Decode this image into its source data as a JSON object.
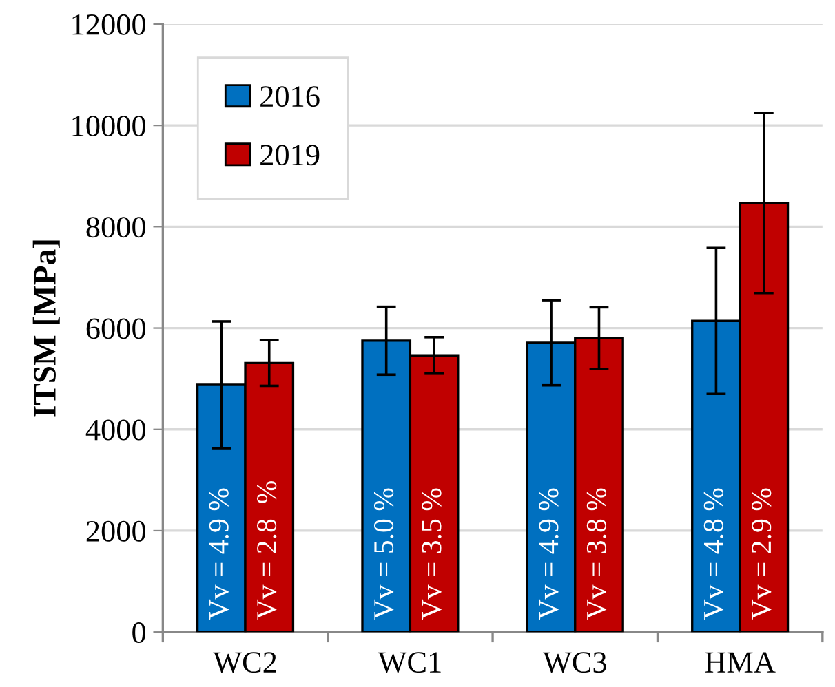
{
  "chart_data": {
    "type": "bar",
    "ylabel": "ITSM [MPa]",
    "categories": [
      "WC2",
      "WC1",
      "WC3",
      "HMA"
    ],
    "series": [
      {
        "name": "2016",
        "color": "#0070c0",
        "values": [
          4880,
          5750,
          5710,
          6140
        ],
        "errors": [
          1250,
          670,
          840,
          1440
        ]
      },
      {
        "name": "2019",
        "color": "#c00000",
        "values": [
          5310,
          5460,
          5800,
          8470
        ],
        "errors": [
          450,
          360,
          610,
          1780
        ]
      }
    ],
    "annotations": [
      "Vv = 4.9 %",
      "Vv = 5.0 %",
      "Vv = 4.9 %",
      "Vv = 4.8 %",
      "Vv = 2.8  %",
      "Vv = 3.5 %",
      "Vv = 3.8 %",
      "Vv = 2.9 %"
    ],
    "ylim": [
      0,
      12000
    ],
    "yticks": [
      0,
      2000,
      4000,
      6000,
      8000,
      10000,
      12000
    ],
    "grid": "y",
    "legend": "top left"
  }
}
